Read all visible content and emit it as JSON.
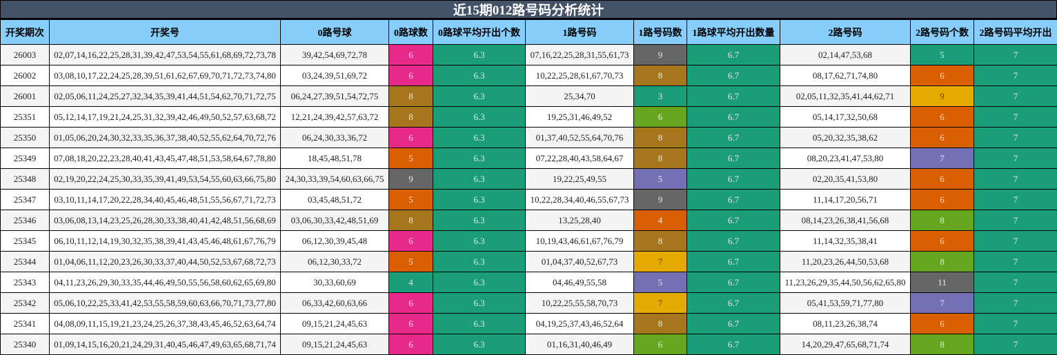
{
  "title": "近15期012路号码分析统计",
  "palette": {
    "header_bg": "#87cefa",
    "title_bg": "#435267",
    "teal": "#1b9e77",
    "pink": "#e7298a",
    "orange": "#d95f02",
    "purple": "#7570b3",
    "lime": "#66a61e",
    "yellow": "#e6ab02",
    "brown": "#a6761d",
    "gray": "#666666"
  },
  "columns": [
    "开奖期次",
    "开奖号",
    "0路号球",
    "0路球数",
    "0路球平均开出个数",
    "1路号码",
    "1路号码数",
    "1路球平均开出数量",
    "2路号码",
    "2路号码个数",
    "2路号码平均开出"
  ],
  "rows": [
    {
      "issue": "26003",
      "numbers": "02,07,14,16,22,25,28,31,39,42,47,53,54,55,61,68,69,72,73,78",
      "r0": "39,42,54,69,72,78",
      "r0_count": "6",
      "r0_count_color": "pink",
      "r0_avg": "6.3",
      "r1": "07,16,22,25,28,31,55,61,73",
      "r1_count": "9",
      "r1_count_color": "gray",
      "r1_avg": "6.7",
      "r2": "02,14,47,53,68",
      "r2_count": "5",
      "r2_count_color": "teal",
      "r2_avg": "7"
    },
    {
      "issue": "26002",
      "numbers": "03,08,10,17,22,24,25,28,39,51,61,62,67,69,70,71,72,73,74,80",
      "r0": "03,24,39,51,69,72",
      "r0_count": "6",
      "r0_count_color": "pink",
      "r0_avg": "6.3",
      "r1": "10,22,25,28,61,67,70,73",
      "r1_count": "8",
      "r1_count_color": "brown",
      "r1_avg": "6.7",
      "r2": "08,17,62,71,74,80",
      "r2_count": "6",
      "r2_count_color": "orange",
      "r2_avg": "7"
    },
    {
      "issue": "26001",
      "numbers": "02,05,06,11,24,25,27,32,34,35,39,41,44,51,54,62,70,71,72,75",
      "r0": "06,24,27,39,51,54,72,75",
      "r0_count": "8",
      "r0_count_color": "brown",
      "r0_avg": "6.3",
      "r1": "25,34,70",
      "r1_count": "3",
      "r1_count_color": "teal",
      "r1_avg": "6.7",
      "r2": "02,05,11,32,35,41,44,62,71",
      "r2_count": "9",
      "r2_count_color": "yellow",
      "r2_avg": "7"
    },
    {
      "issue": "25351",
      "numbers": "05,12,14,17,19,21,24,25,31,32,39,42,46,49,50,52,57,63,68,72",
      "r0": "12,21,24,39,42,57,63,72",
      "r0_count": "8",
      "r0_count_color": "brown",
      "r0_avg": "6.3",
      "r1": "19,25,31,46,49,52",
      "r1_count": "6",
      "r1_count_color": "lime",
      "r1_avg": "6.7",
      "r2": "05,14,17,32,50,68",
      "r2_count": "6",
      "r2_count_color": "orange",
      "r2_avg": "7"
    },
    {
      "issue": "25350",
      "numbers": "01,05,06,20,24,30,32,33,35,36,37,38,40,52,55,62,64,70,72,76",
      "r0": "06,24,30,33,36,72",
      "r0_count": "6",
      "r0_count_color": "pink",
      "r0_avg": "6.3",
      "r1": "01,37,40,52,55,64,70,76",
      "r1_count": "8",
      "r1_count_color": "brown",
      "r1_avg": "6.7",
      "r2": "05,20,32,35,38,62",
      "r2_count": "6",
      "r2_count_color": "orange",
      "r2_avg": "7"
    },
    {
      "issue": "25349",
      "numbers": "07,08,18,20,22,23,28,40,41,43,45,47,48,51,53,58,64,67,78,80",
      "r0": "18,45,48,51,78",
      "r0_count": "5",
      "r0_count_color": "orange",
      "r0_avg": "6.3",
      "r1": "07,22,28,40,43,58,64,67",
      "r1_count": "8",
      "r1_count_color": "brown",
      "r1_avg": "6.7",
      "r2": "08,20,23,41,47,53,80",
      "r2_count": "7",
      "r2_count_color": "purple",
      "r2_avg": "7"
    },
    {
      "issue": "25348",
      "numbers": "02,19,20,22,24,25,30,33,35,39,41,49,53,54,55,60,63,66,75,80",
      "r0": "24,30,33,39,54,60,63,66,75",
      "r0_count": "9",
      "r0_count_color": "gray",
      "r0_avg": "6.3",
      "r1": "19,22,25,49,55",
      "r1_count": "5",
      "r1_count_color": "purple",
      "r1_avg": "6.7",
      "r2": "02,20,35,41,53,80",
      "r2_count": "6",
      "r2_count_color": "orange",
      "r2_avg": "7"
    },
    {
      "issue": "25347",
      "numbers": "03,10,11,14,17,20,22,28,34,40,45,46,48,51,55,56,67,71,72,73",
      "r0": "03,45,48,51,72",
      "r0_count": "5",
      "r0_count_color": "orange",
      "r0_avg": "6.3",
      "r1": "10,22,28,34,40,46,55,67,73",
      "r1_count": "9",
      "r1_count_color": "gray",
      "r1_avg": "6.7",
      "r2": "11,14,17,20,56,71",
      "r2_count": "6",
      "r2_count_color": "orange",
      "r2_avg": "7"
    },
    {
      "issue": "25346",
      "numbers": "03,06,08,13,14,23,25,26,28,30,33,38,40,41,42,48,51,56,68,69",
      "r0": "03,06,30,33,42,48,51,69",
      "r0_count": "8",
      "r0_count_color": "brown",
      "r0_avg": "6.3",
      "r1": "13,25,28,40",
      "r1_count": "4",
      "r1_count_color": "orange",
      "r1_avg": "6.7",
      "r2": "08,14,23,26,38,41,56,68",
      "r2_count": "8",
      "r2_count_color": "lime",
      "r2_avg": "7"
    },
    {
      "issue": "25345",
      "numbers": "06,10,11,12,14,19,30,32,35,38,39,41,43,45,46,48,61,67,76,79",
      "r0": "06,12,30,39,45,48",
      "r0_count": "6",
      "r0_count_color": "pink",
      "r0_avg": "6.3",
      "r1": "10,19,43,46,61,67,76,79",
      "r1_count": "8",
      "r1_count_color": "brown",
      "r1_avg": "6.7",
      "r2": "11,14,32,35,38,41",
      "r2_count": "6",
      "r2_count_color": "orange",
      "r2_avg": "7"
    },
    {
      "issue": "25344",
      "numbers": "01,04,06,11,12,20,23,26,30,33,37,40,44,50,52,53,67,68,72,73",
      "r0": "06,12,30,33,72",
      "r0_count": "5",
      "r0_count_color": "orange",
      "r0_avg": "6.3",
      "r1": "01,04,37,40,52,67,73",
      "r1_count": "7",
      "r1_count_color": "yellow",
      "r1_avg": "6.7",
      "r2": "11,20,23,26,44,50,53,68",
      "r2_count": "8",
      "r2_count_color": "lime",
      "r2_avg": "7"
    },
    {
      "issue": "25343",
      "numbers": "04,11,23,26,29,30,33,35,44,46,49,50,55,56,58,60,62,65,69,80",
      "r0": "30,33,60,69",
      "r0_count": "4",
      "r0_count_color": "teal",
      "r0_avg": "6.3",
      "r1": "04,46,49,55,58",
      "r1_count": "5",
      "r1_count_color": "purple",
      "r1_avg": "6.7",
      "r2": "11,23,26,29,35,44,50,56,62,65,80",
      "r2_count": "11",
      "r2_count_color": "gray",
      "r2_avg": "7"
    },
    {
      "issue": "25342",
      "numbers": "05,06,10,22,25,33,41,42,53,55,58,59,60,63,66,70,71,73,77,80",
      "r0": "06,33,42,60,63,66",
      "r0_count": "6",
      "r0_count_color": "pink",
      "r0_avg": "6.3",
      "r1": "10,22,25,55,58,70,73",
      "r1_count": "7",
      "r1_count_color": "yellow",
      "r1_avg": "6.7",
      "r2": "05,41,53,59,71,77,80",
      "r2_count": "7",
      "r2_count_color": "purple",
      "r2_avg": "7"
    },
    {
      "issue": "25341",
      "numbers": "04,08,09,11,15,19,21,23,24,25,26,37,38,43,45,46,52,63,64,74",
      "r0": "09,15,21,24,45,63",
      "r0_count": "6",
      "r0_count_color": "pink",
      "r0_avg": "6.3",
      "r1": "04,19,25,37,43,46,52,64",
      "r1_count": "8",
      "r1_count_color": "brown",
      "r1_avg": "6.7",
      "r2": "08,11,23,26,38,74",
      "r2_count": "6",
      "r2_count_color": "orange",
      "r2_avg": "7"
    },
    {
      "issue": "25340",
      "numbers": "01,09,14,15,16,20,21,24,29,31,40,45,46,47,49,63,65,68,71,74",
      "r0": "09,15,21,24,45,63",
      "r0_count": "6",
      "r0_count_color": "pink",
      "r0_avg": "6.3",
      "r1": "01,16,31,40,46,49",
      "r1_count": "6",
      "r1_count_color": "lime",
      "r1_avg": "6.7",
      "r2": "14,20,29,47,65,68,71,74",
      "r2_count": "8",
      "r2_count_color": "lime",
      "r2_avg": "7"
    }
  ]
}
